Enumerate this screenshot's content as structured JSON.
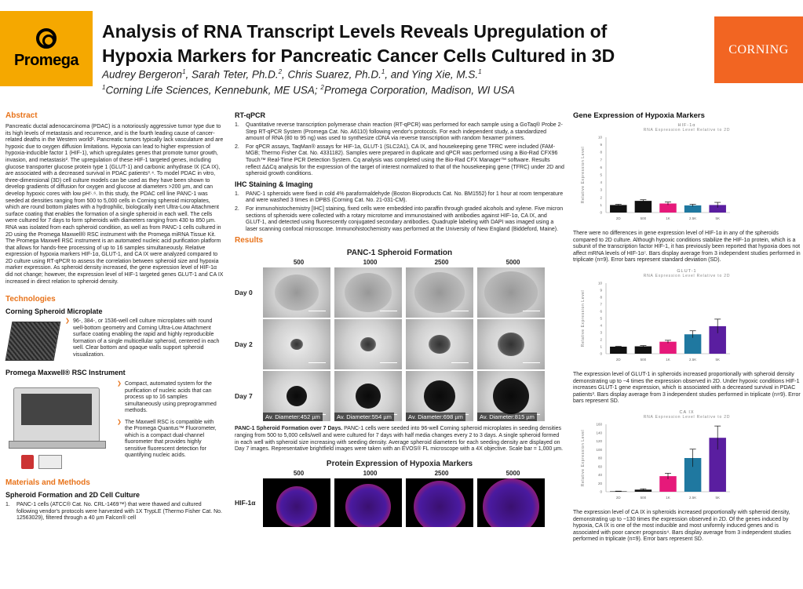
{
  "header": {
    "promega_logo": "Promega",
    "corning_logo": "CORNING",
    "title_line1": "Analysis of RNA Transcript Levels Reveals Upregulation of",
    "title_line2": "Hypoxia Markers for Pancreatic Cancer Cells Cultured in 3D",
    "authors": [
      {
        "text": "Audrey Bergeron",
        "sup": "1"
      },
      {
        "text": ", Sarah Teter, Ph.D.",
        "sup": "2"
      },
      {
        "text": ", Chris Suarez, Ph.D.",
        "sup": "1"
      },
      {
        "text": ", and Ying Xie, M.S.",
        "sup": "1"
      }
    ],
    "affiliations": [
      {
        "sup": "1",
        "text": "Corning Life Sciences, Kennebunk, ME USA; "
      },
      {
        "sup": "2",
        "text": "Promega Corporation, Madison, WI USA"
      }
    ]
  },
  "abstract": {
    "heading": "Abstract",
    "text": "Pancreatic ductal adenocarcinoma (PDAC) is a notoriously aggressive tumor type due to its high levels of metastasis and recurrence, and is the fourth leading cause of cancer-related deaths in the Western world¹. Pancreatic tumors typically lack vasculature and are hypoxic due to oxygen diffusion limitations. Hypoxia can lead to higher expression of hypoxia-inducible factor 1 (HIF-1), which upregulates genes that promote tumor growth, invasion, and metastasis². The upregulation of these HIF-1 targeted genes, including glucose transporter glucose protein type 1 (GLUT-1) and carbonic anhydrase IX (CA IX), are associated with a decreased survival in PDAC patients³˒⁴. To model PDAC in vitro, three-dimensional (3D) cell culture models can be used as they have been shown to develop gradients of diffusion for oxygen and glucose at diameters >200 µm, and can develop hypoxic cores with low pH⁵˒⁶. In this study, the PDAC cell line PANC-1 was seeded at densities ranging from 500 to 5,000 cells in Corning spheroid microplates, which are round bottom plates with a hydrophilic, biologically inert Ultra-Low Attachment surface coating that enables the formation of a single spheroid in each well. The cells were cultured for 7 days to form spheroids with diameters ranging from 430 to 850 µm. RNA was isolated from each spheroid condition, as well as from PANC-1 cells cultured in 2D using the Promega Maxwell® RSC instrument with the Promega miRNA Tissue Kit. The Promega Maxwell RSC instrument is an automated nucleic acid purification platform that allows for hands-free processing of up to 16 samples simultaneously. Relative expression of hypoxia markers HIF-1α, GLUT-1, and CA IX were analyzed compared to 2D culture using RT-qPCR to assess the correlation between spheroid size and hypoxia marker expression. As spheroid density increased, the gene expression level of HIF-1α did not change; however, the expression level of HIF-1 targeted genes GLUT-1 and CA IX increased in direct relation to spheroid density."
  },
  "technologies": {
    "heading": "Technologies",
    "microplate_heading": "Corning Spheroid Microplate",
    "microplate_text": "96-, 384-, or 1536-well cell culture microplates with round well-bottom geometry and Corning Ultra-Low Attachment surface coating enabling the rapid and highly reproducible formation of a single multicellular spheroid, centered in each well. Clear bottom and opaque walls support spheroid visualization.",
    "maxwell_heading": "Promega Maxwell® RSC Instrument",
    "maxwell_bullet1": "Compact, automated system for the purification of nucleic acids that can process up to 16 samples simultaneously using preprogrammed methods.",
    "maxwell_bullet2": "The Maxwell RSC is compatible with the Promega Quantus™ Fluorometer, which is a compact dual-channel fluorometer that provides highly sensitive fluorescent detection for quantifying nucleic acids."
  },
  "methods": {
    "heading": "Materials and Methods",
    "subheading": "Spheroid Formation and 2D Cell Culture",
    "item1": "PANC-1 cells (ATCC® Cat. No. CRL-1469™) that were thawed and cultured following vendor's protocols were harvested with 1X TrypLE (Thermo Fisher Cat. No. 12563029), filtered through a 40 µm Falcon® cell"
  },
  "rtqpcr": {
    "heading": "RT-qPCR",
    "item1": "Quantitative reverse transcription polymerase chain reaction (RT-qPCR) was performed for each sample using a GoTaq® Probe 2-Step RT-qPCR System (Promega Cat. No. A6110) following vendor's protocols. For each independent study, a standardized amount of RNA (80 to 95 ng) was used to synthesize cDNA via reverse transcription with random hexamer primers.",
    "item2": "For qPCR assays, TaqMan® assays for HIF-1a, GLUT-1 (SLC2A1), CA IX, and housekeeping gene TFRC were included (FAM-MGB; Thermo Fisher Cat. No. 4331182). Samples were prepared in duplicate and qPCR was performed using a Bio-Rad CFX96 Touch™ Real-Time PCR Detection System. Cq analysis was completed using the Bio-Rad CFX Manager™ software. Results reflect ΔΔCq analysis for the expression of the target of interest normalized to that of the housekeeping gene (TFRC) under 2D and spheroid growth conditions."
  },
  "ihc": {
    "heading": "IHC Staining & Imaging",
    "item1": "PANC-1 spheroids were fixed in cold 4% paraformaldehyde (Boston Bioproducts Cat. No. BM1552) for 1 hour at room temperature and were washed 3 times in DPBS (Corning Cat. No. 21-031-CM).",
    "item2": "For immunohistochemistry [IHC] staining, fixed cells were embedded into paraffin through graded alcohols and xylene. Five micron sections of spheroids were collected with a rotary microtome and immunostained with antibodies against HIF-1α, CA IX, and GLUT-1, and detected using fluorescently conjugated secondary antibodies. Quadruple labeling with DAPI was imaged using a laser scanning confocal microscope. Immunohistochemistry was performed at the University of New England (Biddeford, Maine)."
  },
  "results": {
    "heading": "Results",
    "panel_title": "PANC-1 Spheroid Formation",
    "densities": [
      "500",
      "1000",
      "2500",
      "5000"
    ],
    "rows": [
      "Day 0",
      "Day 2",
      "Day 7"
    ],
    "diameters": [
      "Av. Diameter:452 µm",
      "Av. Diameter:554 µm",
      "Av. Diameter:698 µm",
      "Av. Diameter:815 µm"
    ],
    "caption_bold": "PANC-1 Spheroid Formation over 7 Days.",
    "caption": " PANC-1 cells were seeded into 96-well Corning spheroid microplates in seeding densities ranging from 500 to 5,000 cells/well and were cultured for 7 days with half media changes every 2 to 3 days. A single spheroid formed in each well with spheroid size increasing with seeding density. Average spheroid diameters for each seeding density are displayed on Day 7 images. Representative brightfield images were taken with an EVOS® FL microscope with a 4X objective. Scale bar = 1,000 µm.",
    "protein_title": "Protein Expression of Hypoxia Markers",
    "protein_densities": [
      "500",
      "1000",
      "2500",
      "5000"
    ],
    "protein_row": "HIF-1α"
  },
  "gene_expression": {
    "heading": "Gene Expression of Hypoxia Markers",
    "chart1_text": "There were no differences in gene expression level of HIF-1α in any of the spheroids compared to 2D culture. Although hypoxic conditions stabilize the HIF-1α protein, which is a subunit of the transcription factor HIF-1, it has previously been reported that hypoxia does not affect mRNA levels of HIF-1α⁷. Bars display average from 3 independent studies performed in triplicate (n=9). Error bars represent standard deviation (SD).",
    "chart2_text": "The expression level of GLUT-1 in spheroids increased proportionally with spheroid density demonstrating up to ~4 times the expression observed in 2D. Under hypoxic conditions HIF-1 increases GLUT-1 gene expression, which is associated with a decreased survival in PDAC patients³. Bars display average from 3 independent studies performed in triplicate (n=9). Error bars represent SD.",
    "chart3_text": "The expression level of CA IX in spheroids increased proportionally with spheroid density, demonstrating up to ~130 times the expression observed in 2D. Of the genes induced by hypoxia, CA IX is one of the most inducible and most uniformly induced genes and is associated with poor cancer prognosis⁴. Bars display average from 3 independent studies performed in triplicate (n=9). Error bars represent SD."
  },
  "chart_data": [
    {
      "type": "bar",
      "title": "HIF-1α",
      "subtitle": "RNA Expression Level Relative to 2D",
      "ylabel": "Relative Expression Level",
      "categories": [
        "2D",
        "500",
        "1K",
        "2.5K",
        "5K"
      ],
      "values": [
        1.0,
        1.55,
        1.2,
        0.95,
        1.0
      ],
      "errors": [
        0.1,
        0.15,
        0.2,
        0.15,
        0.35
      ],
      "ylim": [
        0,
        10
      ],
      "yticks": [
        "0",
        "1",
        "2",
        "3",
        "4",
        "5",
        "6",
        "7",
        "8",
        "9",
        "10"
      ],
      "colors": [
        "#111111",
        "#111111",
        "#e6197a",
        "#1f78a0",
        "#5a1ea0"
      ]
    },
    {
      "type": "bar",
      "title": "GLUT-1",
      "subtitle": "RNA Expression Level Relative to 2D",
      "ylabel": "Relative Expression Level",
      "categories": [
        "2D",
        "500",
        "1K",
        "2.5K",
        "5K"
      ],
      "values": [
        1.0,
        1.05,
        1.7,
        2.75,
        3.9
      ],
      "errors": [
        0.05,
        0.1,
        0.2,
        0.5,
        1.0
      ],
      "ylim": [
        0,
        10
      ],
      "yticks": [
        "0",
        "1",
        "2",
        "3",
        "4",
        "5",
        "6",
        "7",
        "8",
        "9",
        "10"
      ],
      "colors": [
        "#111111",
        "#111111",
        "#e6197a",
        "#1f78a0",
        "#5a1ea0"
      ]
    },
    {
      "type": "bar",
      "title": "CA IX",
      "subtitle": "RNA Expression Level Relative to 2D",
      "ylabel": "Relative Expression Level",
      "categories": [
        "2D",
        "500",
        "1K",
        "2.5K",
        "5K"
      ],
      "values": [
        1,
        5,
        37,
        80,
        128
      ],
      "errors": [
        0.5,
        2,
        7,
        21,
        28
      ],
      "ylim": [
        0,
        160
      ],
      "yticks": [
        "0",
        "20",
        "40",
        "60",
        "80",
        "100",
        "120",
        "140",
        "160"
      ],
      "colors": [
        "#111111",
        "#111111",
        "#e6197a",
        "#1f78a0",
        "#5a1ea0"
      ]
    }
  ]
}
